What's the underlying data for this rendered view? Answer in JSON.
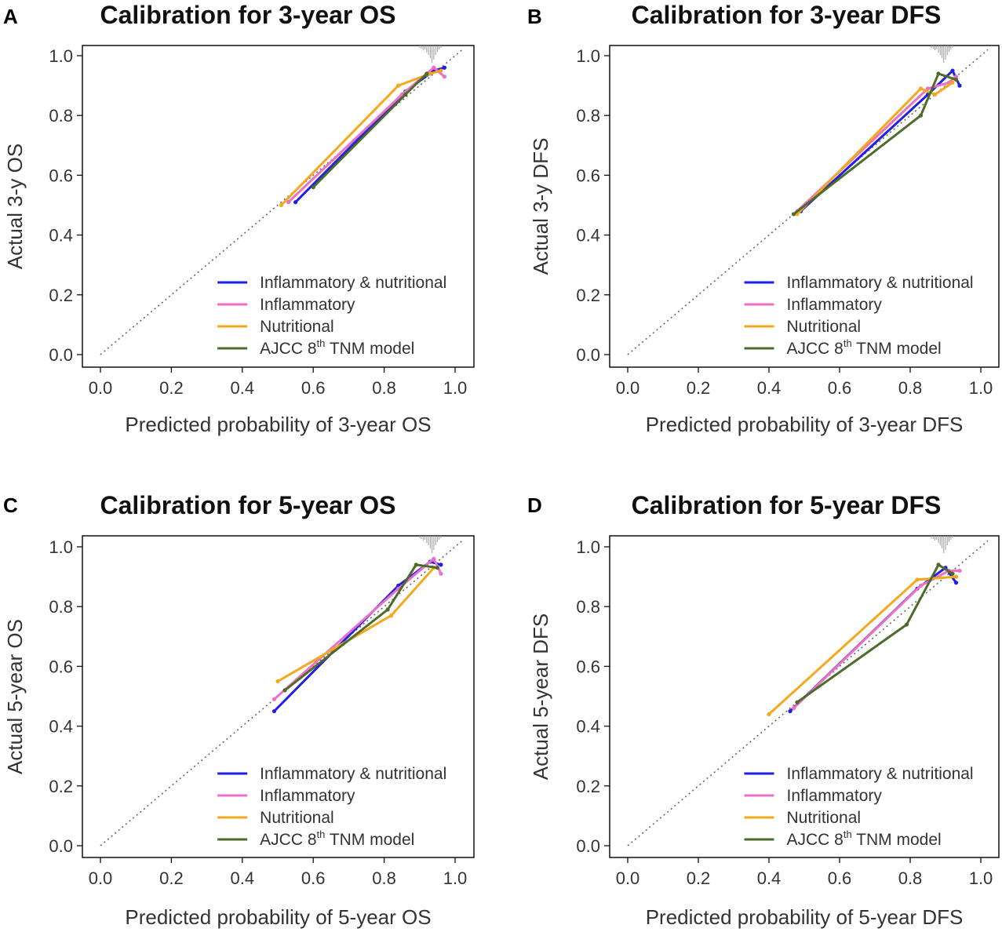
{
  "figure": {
    "legend_entries": [
      {
        "label": "Inflammatory & nutritional",
        "color": "#1f1fe6"
      },
      {
        "label": "Inflammatory",
        "color": "#ee6fc6"
      },
      {
        "label": "Nutritional",
        "color": "#f5a81c"
      },
      {
        "label": "AJCC 8",
        "sup": "th",
        "suffix": " TNM model",
        "color": "#4d6b2a"
      }
    ],
    "reference_line_color": "#666666"
  },
  "chart_data": [
    {
      "panel": "A",
      "type": "line",
      "title": "Calibration for 3-year OS",
      "xlabel": "Predicted probability of 3-year OS",
      "ylabel": "Actual 3-y OS",
      "xlim": [
        0,
        1
      ],
      "ylim": [
        0,
        1
      ],
      "xticks": [
        "0.0",
        "0.2",
        "0.4",
        "0.6",
        "0.8",
        "1.0"
      ],
      "yticks": [
        "0.0",
        "0.2",
        "0.4",
        "0.6",
        "0.8",
        "1.0"
      ],
      "reference": "ideal diagonal y = x",
      "series": [
        {
          "name": "Inflammatory & nutritional",
          "x": [
            0.55,
            0.86,
            0.94,
            0.97
          ],
          "y": [
            0.51,
            0.88,
            0.95,
            0.96
          ]
        },
        {
          "name": "Inflammatory",
          "x": [
            0.53,
            0.85,
            0.94,
            0.97
          ],
          "y": [
            0.51,
            0.87,
            0.96,
            0.93
          ]
        },
        {
          "name": "Nutritional",
          "x": [
            0.51,
            0.84,
            0.93,
            0.96
          ],
          "y": [
            0.5,
            0.9,
            0.94,
            0.95
          ]
        },
        {
          "name": "AJCC 8th TNM model",
          "x": [
            0.6,
            0.86,
            0.92
          ],
          "y": [
            0.56,
            0.87,
            0.94
          ]
        }
      ]
    },
    {
      "panel": "B",
      "type": "line",
      "title": "Calibration for 3-year DFS",
      "xlabel": "Predicted probability of 3-year DFS",
      "ylabel": "Actual 3-y DFS",
      "xlim": [
        0,
        1
      ],
      "ylim": [
        0,
        1
      ],
      "xticks": [
        "0.0",
        "0.2",
        "0.4",
        "0.6",
        "0.8",
        "1.0"
      ],
      "yticks": [
        "0.0",
        "0.2",
        "0.4",
        "0.6",
        "0.8",
        "1.0"
      ],
      "reference": "ideal diagonal y = x",
      "series": [
        {
          "name": "Inflammatory & nutritional",
          "x": [
            0.49,
            0.85,
            0.92,
            0.94
          ],
          "y": [
            0.48,
            0.87,
            0.95,
            0.9
          ]
        },
        {
          "name": "Inflammatory",
          "x": [
            0.48,
            0.85,
            0.91,
            0.93
          ],
          "y": [
            0.48,
            0.89,
            0.91,
            0.93
          ]
        },
        {
          "name": "Nutritional",
          "x": [
            0.48,
            0.83,
            0.87,
            0.92
          ],
          "y": [
            0.47,
            0.89,
            0.87,
            0.91
          ]
        },
        {
          "name": "AJCC 8th TNM model",
          "x": [
            0.47,
            0.83,
            0.88,
            0.93
          ],
          "y": [
            0.47,
            0.8,
            0.94,
            0.92
          ]
        }
      ]
    },
    {
      "panel": "C",
      "type": "line",
      "title": "Calibration for 5-year OS",
      "xlabel": "Predicted probability of 5-year OS",
      "ylabel": "Actual 5-year OS",
      "xlim": [
        0,
        1
      ],
      "ylim": [
        0,
        1
      ],
      "xticks": [
        "0.0",
        "0.2",
        "0.4",
        "0.6",
        "0.8",
        "1.0"
      ],
      "yticks": [
        "0.0",
        "0.2",
        "0.4",
        "0.6",
        "0.8",
        "1.0"
      ],
      "reference": "ideal diagonal y = x",
      "series": [
        {
          "name": "Inflammatory & nutritional",
          "x": [
            0.49,
            0.84,
            0.93,
            0.96
          ],
          "y": [
            0.45,
            0.87,
            0.95,
            0.94
          ]
        },
        {
          "name": "Inflammatory",
          "x": [
            0.49,
            0.84,
            0.94,
            0.96
          ],
          "y": [
            0.49,
            0.86,
            0.96,
            0.91
          ]
        },
        {
          "name": "Nutritional",
          "x": [
            0.5,
            0.82,
            0.94
          ],
          "y": [
            0.55,
            0.77,
            0.93
          ]
        },
        {
          "name": "AJCC 8th TNM model",
          "x": [
            0.52,
            0.81,
            0.89,
            0.95
          ],
          "y": [
            0.52,
            0.79,
            0.94,
            0.93
          ]
        }
      ]
    },
    {
      "panel": "D",
      "type": "line",
      "title": "Calibration for 5-year DFS",
      "xlabel": "Predicted probability of 5-year DFS",
      "ylabel": "Actual 5-year DFS",
      "xlim": [
        0,
        1
      ],
      "ylim": [
        0,
        1
      ],
      "xticks": [
        "0.0",
        "0.2",
        "0.4",
        "0.6",
        "0.8",
        "1.0"
      ],
      "yticks": [
        "0.0",
        "0.2",
        "0.4",
        "0.6",
        "0.8",
        "1.0"
      ],
      "reference": "ideal diagonal y = x",
      "series": [
        {
          "name": "Inflammatory & nutritional",
          "x": [
            0.46,
            0.82,
            0.9,
            0.93
          ],
          "y": [
            0.45,
            0.86,
            0.93,
            0.88
          ]
        },
        {
          "name": "Inflammatory",
          "x": [
            0.47,
            0.83,
            0.91,
            0.94
          ],
          "y": [
            0.46,
            0.87,
            0.92,
            0.92
          ]
        },
        {
          "name": "Nutritional",
          "x": [
            0.4,
            0.82,
            0.93
          ],
          "y": [
            0.44,
            0.89,
            0.9
          ]
        },
        {
          "name": "AJCC 8th TNM model",
          "x": [
            0.48,
            0.79,
            0.88,
            0.92
          ],
          "y": [
            0.48,
            0.74,
            0.94,
            0.91
          ]
        }
      ]
    }
  ]
}
